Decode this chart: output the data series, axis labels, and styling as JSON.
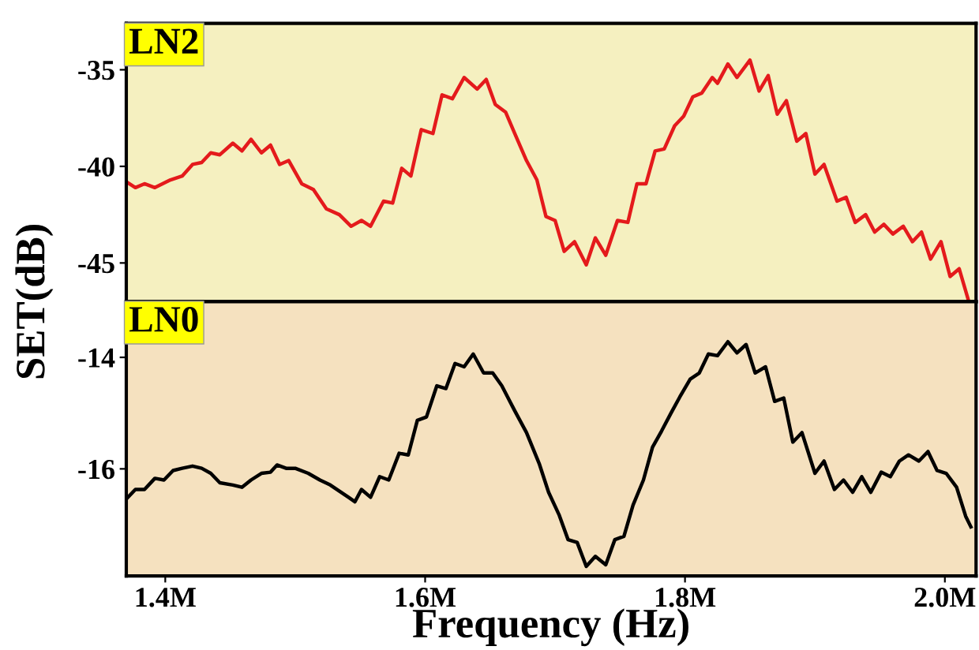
{
  "chart_data": [
    {
      "type": "line",
      "ylabel": "SET(dB)",
      "annotations": [
        "LN2"
      ],
      "xlim": [
        1.37,
        2.024
      ],
      "ylim": [
        -47,
        -32.6
      ],
      "yticks": [
        -35,
        -40,
        -45
      ],
      "tick_labels": "y",
      "grid": false,
      "legend": false,
      "series": [
        {
          "color": "#e41a1c",
          "x": [
            1.37,
            1.377,
            1.384,
            1.392,
            1.404,
            1.413,
            1.421,
            1.428,
            1.435,
            1.442,
            1.452,
            1.459,
            1.466,
            1.474,
            1.481,
            1.488,
            1.495,
            1.505,
            1.514,
            1.524,
            1.534,
            1.543,
            1.551,
            1.558,
            1.568,
            1.575,
            1.582,
            1.589,
            1.597,
            1.606,
            1.613,
            1.621,
            1.63,
            1.64,
            1.647,
            1.654,
            1.662,
            1.669,
            1.678,
            1.686,
            1.693,
            1.7,
            1.707,
            1.715,
            1.724,
            1.731,
            1.739,
            1.748,
            1.756,
            1.763,
            1.77,
            1.777,
            1.784,
            1.792,
            1.799,
            1.806,
            1.813,
            1.821,
            1.825,
            1.833,
            1.84,
            1.85,
            1.857,
            1.864,
            1.871,
            1.878,
            1.886,
            1.893,
            1.9,
            1.907,
            1.917,
            1.924,
            1.931,
            1.939,
            1.946,
            1.953,
            1.96,
            1.968,
            1.975,
            1.982,
            1.989,
            1.997,
            2.004,
            2.011,
            2.018
          ],
          "values": [
            -40.8,
            -41.1,
            -40.9,
            -41.1,
            -40.7,
            -40.5,
            -39.9,
            -39.8,
            -39.3,
            -39.4,
            -38.8,
            -39.2,
            -38.6,
            -39.3,
            -38.9,
            -39.9,
            -39.7,
            -40.9,
            -41.2,
            -42.2,
            -42.5,
            -43.1,
            -42.8,
            -43.1,
            -41.8,
            -41.9,
            -40.1,
            -40.5,
            -38.1,
            -38.3,
            -36.3,
            -36.5,
            -35.4,
            -36.0,
            -35.5,
            -36.8,
            -37.2,
            -38.3,
            -39.7,
            -40.7,
            -42.6,
            -42.8,
            -44.4,
            -43.9,
            -45.1,
            -43.7,
            -44.6,
            -42.8,
            -42.9,
            -40.9,
            -40.9,
            -39.2,
            -39.1,
            -37.9,
            -37.4,
            -36.4,
            -36.2,
            -35.4,
            -35.7,
            -34.7,
            -35.4,
            -34.5,
            -36.1,
            -35.3,
            -37.3,
            -36.6,
            -38.7,
            -38.3,
            -40.4,
            -39.9,
            -41.8,
            -41.6,
            -42.9,
            -42.5,
            -43.4,
            -43.0,
            -43.5,
            -43.1,
            -43.9,
            -43.4,
            -44.8,
            -43.9,
            -45.7,
            -45.3,
            -46.9
          ]
        }
      ]
    },
    {
      "type": "line",
      "xlabel": "Frequency (Hz)",
      "annotations": [
        "LN0"
      ],
      "xlim": [
        1.37,
        2.024
      ],
      "xticks": [
        {
          "value": 1.4,
          "label": "1.4M"
        },
        {
          "value": 1.6,
          "label": "1.6M"
        },
        {
          "value": 1.8,
          "label": "1.8M"
        },
        {
          "value": 2.0,
          "label": "2.0M"
        }
      ],
      "ylim": [
        -17.92,
        -13
      ],
      "yticks": [
        -14,
        -16
      ],
      "grid": false,
      "legend": false,
      "series": [
        {
          "color": "#000000",
          "x": [
            1.37,
            1.377,
            1.384,
            1.392,
            1.399,
            1.406,
            1.413,
            1.421,
            1.428,
            1.435,
            1.442,
            1.452,
            1.459,
            1.466,
            1.474,
            1.481,
            1.486,
            1.493,
            1.5,
            1.51,
            1.519,
            1.527,
            1.534,
            1.541,
            1.546,
            1.551,
            1.558,
            1.565,
            1.572,
            1.58,
            1.587,
            1.594,
            1.601,
            1.609,
            1.616,
            1.623,
            1.63,
            1.637,
            1.645,
            1.652,
            1.659,
            1.669,
            1.678,
            1.688,
            1.695,
            1.703,
            1.71,
            1.717,
            1.724,
            1.731,
            1.739,
            1.746,
            1.753,
            1.76,
            1.768,
            1.775,
            1.782,
            1.789,
            1.796,
            1.804,
            1.811,
            1.818,
            1.825,
            1.833,
            1.84,
            1.847,
            1.854,
            1.862,
            1.869,
            1.876,
            1.883,
            1.89,
            1.9,
            1.907,
            1.915,
            1.922,
            1.929,
            1.936,
            1.943,
            1.951,
            1.958,
            1.965,
            1.972,
            1.98,
            1.987,
            1.994,
            2.001,
            2.009,
            2.016,
            2.02
          ],
          "values": [
            -16.54,
            -16.37,
            -16.37,
            -16.17,
            -16.2,
            -16.03,
            -15.99,
            -15.95,
            -15.99,
            -16.08,
            -16.25,
            -16.29,
            -16.33,
            -16.2,
            -16.08,
            -16.06,
            -15.93,
            -15.99,
            -15.99,
            -16.08,
            -16.2,
            -16.29,
            -16.4,
            -16.51,
            -16.59,
            -16.37,
            -16.51,
            -16.14,
            -16.2,
            -15.72,
            -15.75,
            -15.13,
            -15.07,
            -14.51,
            -14.56,
            -14.11,
            -14.17,
            -13.94,
            -14.28,
            -14.28,
            -14.51,
            -14.96,
            -15.35,
            -15.92,
            -16.42,
            -16.82,
            -17.27,
            -17.32,
            -17.75,
            -17.57,
            -17.72,
            -17.27,
            -17.21,
            -16.65,
            -16.2,
            -15.61,
            -15.32,
            -15.01,
            -14.71,
            -14.39,
            -14.28,
            -13.94,
            -13.97,
            -13.72,
            -13.92,
            -13.77,
            -14.28,
            -14.17,
            -14.79,
            -14.73,
            -15.52,
            -15.35,
            -16.08,
            -15.86,
            -16.37,
            -16.2,
            -16.42,
            -16.14,
            -16.42,
            -16.06,
            -16.14,
            -15.86,
            -15.75,
            -15.86,
            -15.69,
            -16.03,
            -16.08,
            -16.33,
            -16.85,
            -17.04
          ]
        }
      ]
    }
  ]
}
